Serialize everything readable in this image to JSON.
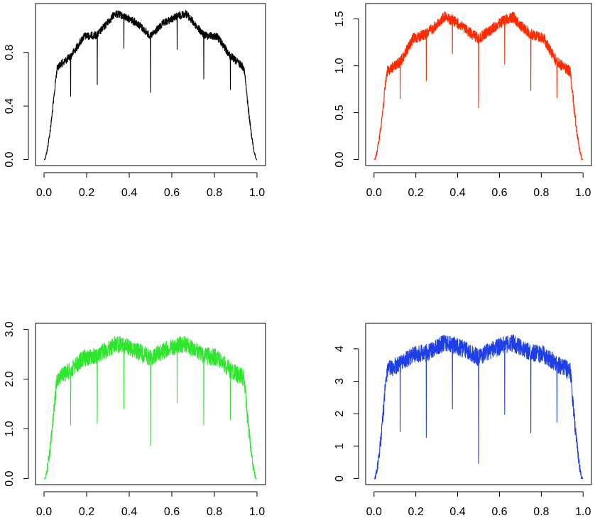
{
  "chart_data": [
    {
      "type": "line",
      "title": "",
      "xlabel": "",
      "ylabel": "",
      "xlim": [
        0.0,
        1.0
      ],
      "ylim": [
        0.0,
        1.12
      ],
      "x_ticks": [
        "0.0",
        "0.2",
        "0.4",
        "0.6",
        "0.8",
        "1.0"
      ],
      "y_ticks": [
        "0.0",
        "0.4",
        "0.8"
      ],
      "y_tick_values": [
        0.0,
        0.4,
        0.8
      ],
      "color": "#000000",
      "grid": false,
      "legend": "none",
      "series": [
        {
          "values_x": [
            0,
            0.0625,
            0.125,
            0.1875,
            0.25,
            0.3125,
            0.333,
            0.375,
            0.4375,
            0.5,
            0.5625,
            0.625,
            0.667,
            0.6875,
            0.75,
            0.8125,
            0.875,
            0.9375,
            1.0
          ],
          "values_y": [
            0.0,
            0.72,
            0.8,
            0.95,
            0.96,
            1.08,
            1.12,
            1.1,
            1.05,
            0.95,
            1.05,
            1.1,
            1.12,
            1.08,
            0.96,
            0.95,
            0.8,
            0.72,
            0.0
          ]
        }
      ]
    },
    {
      "type": "line",
      "title": "",
      "xlabel": "",
      "ylabel": "",
      "xlim": [
        0.0,
        1.0
      ],
      "ylim": [
        0.0,
        1.6
      ],
      "x_ticks": [
        "0.0",
        "0.2",
        "0.4",
        "0.6",
        "0.8",
        "1.0"
      ],
      "y_ticks": [
        "0.0",
        "0.5",
        "1.0",
        "1.5"
      ],
      "y_tick_values": [
        0.0,
        0.5,
        1.0,
        1.5
      ],
      "color": "#ff2a00",
      "grid": false,
      "legend": "none",
      "series": [
        {
          "values_x": [
            0,
            0.0625,
            0.125,
            0.1875,
            0.25,
            0.3125,
            0.333,
            0.375,
            0.4375,
            0.5,
            0.5625,
            0.625,
            0.667,
            0.6875,
            0.75,
            0.8125,
            0.875,
            0.9375,
            1.0
          ],
          "values_y": [
            0.0,
            1.0,
            1.1,
            1.35,
            1.4,
            1.52,
            1.58,
            1.55,
            1.45,
            1.35,
            1.45,
            1.55,
            1.58,
            1.52,
            1.4,
            1.35,
            1.1,
            1.0,
            0.0
          ]
        }
      ]
    },
    {
      "type": "line",
      "title": "",
      "xlabel": "",
      "ylabel": "",
      "xlim": [
        0.0,
        1.0
      ],
      "ylim": [
        0.0,
        3.0
      ],
      "x_ticks": [
        "0.0",
        "0.2",
        "0.4",
        "0.6",
        "0.8",
        "1.0"
      ],
      "y_ticks": [
        "0.0",
        "1.0",
        "2.0",
        "3.0"
      ],
      "y_tick_values": [
        0.0,
        1.0,
        2.0,
        3.0
      ],
      "color": "#2ee62e",
      "grid": false,
      "legend": "none",
      "series": [
        {
          "values_x": [
            0,
            0.0625,
            0.125,
            0.1875,
            0.25,
            0.3125,
            0.333,
            0.375,
            0.4375,
            0.5,
            0.5625,
            0.625,
            0.667,
            0.6875,
            0.75,
            0.8125,
            0.875,
            0.9375,
            1.0
          ],
          "values_y": [
            0.0,
            2.2,
            2.35,
            2.6,
            2.65,
            2.8,
            2.88,
            2.85,
            2.75,
            2.6,
            2.75,
            2.85,
            2.88,
            2.8,
            2.65,
            2.6,
            2.35,
            2.2,
            0.0
          ]
        }
      ]
    },
    {
      "type": "line",
      "title": "",
      "xlabel": "",
      "ylabel": "",
      "xlim": [
        0.0,
        1.0
      ],
      "ylim": [
        0.0,
        4.6
      ],
      "x_ticks": [
        "0.0",
        "0.2",
        "0.4",
        "0.6",
        "0.8",
        "1.0"
      ],
      "y_ticks": [
        "0",
        "1",
        "2",
        "3",
        "4"
      ],
      "y_tick_values": [
        0,
        1,
        2,
        3,
        4
      ],
      "color": "#1f3fe6",
      "grid": false,
      "legend": "none",
      "series": [
        {
          "values_x": [
            0,
            0.0625,
            0.125,
            0.1875,
            0.25,
            0.3125,
            0.333,
            0.375,
            0.4375,
            0.5,
            0.5625,
            0.625,
            0.667,
            0.6875,
            0.75,
            0.8125,
            0.875,
            0.9375,
            1.0
          ],
          "values_y": [
            0.0,
            3.6,
            3.8,
            4.1,
            4.15,
            4.35,
            4.45,
            4.4,
            4.25,
            4.0,
            4.25,
            4.4,
            4.45,
            4.35,
            4.15,
            4.1,
            3.8,
            3.6,
            0.0
          ]
        }
      ]
    }
  ]
}
